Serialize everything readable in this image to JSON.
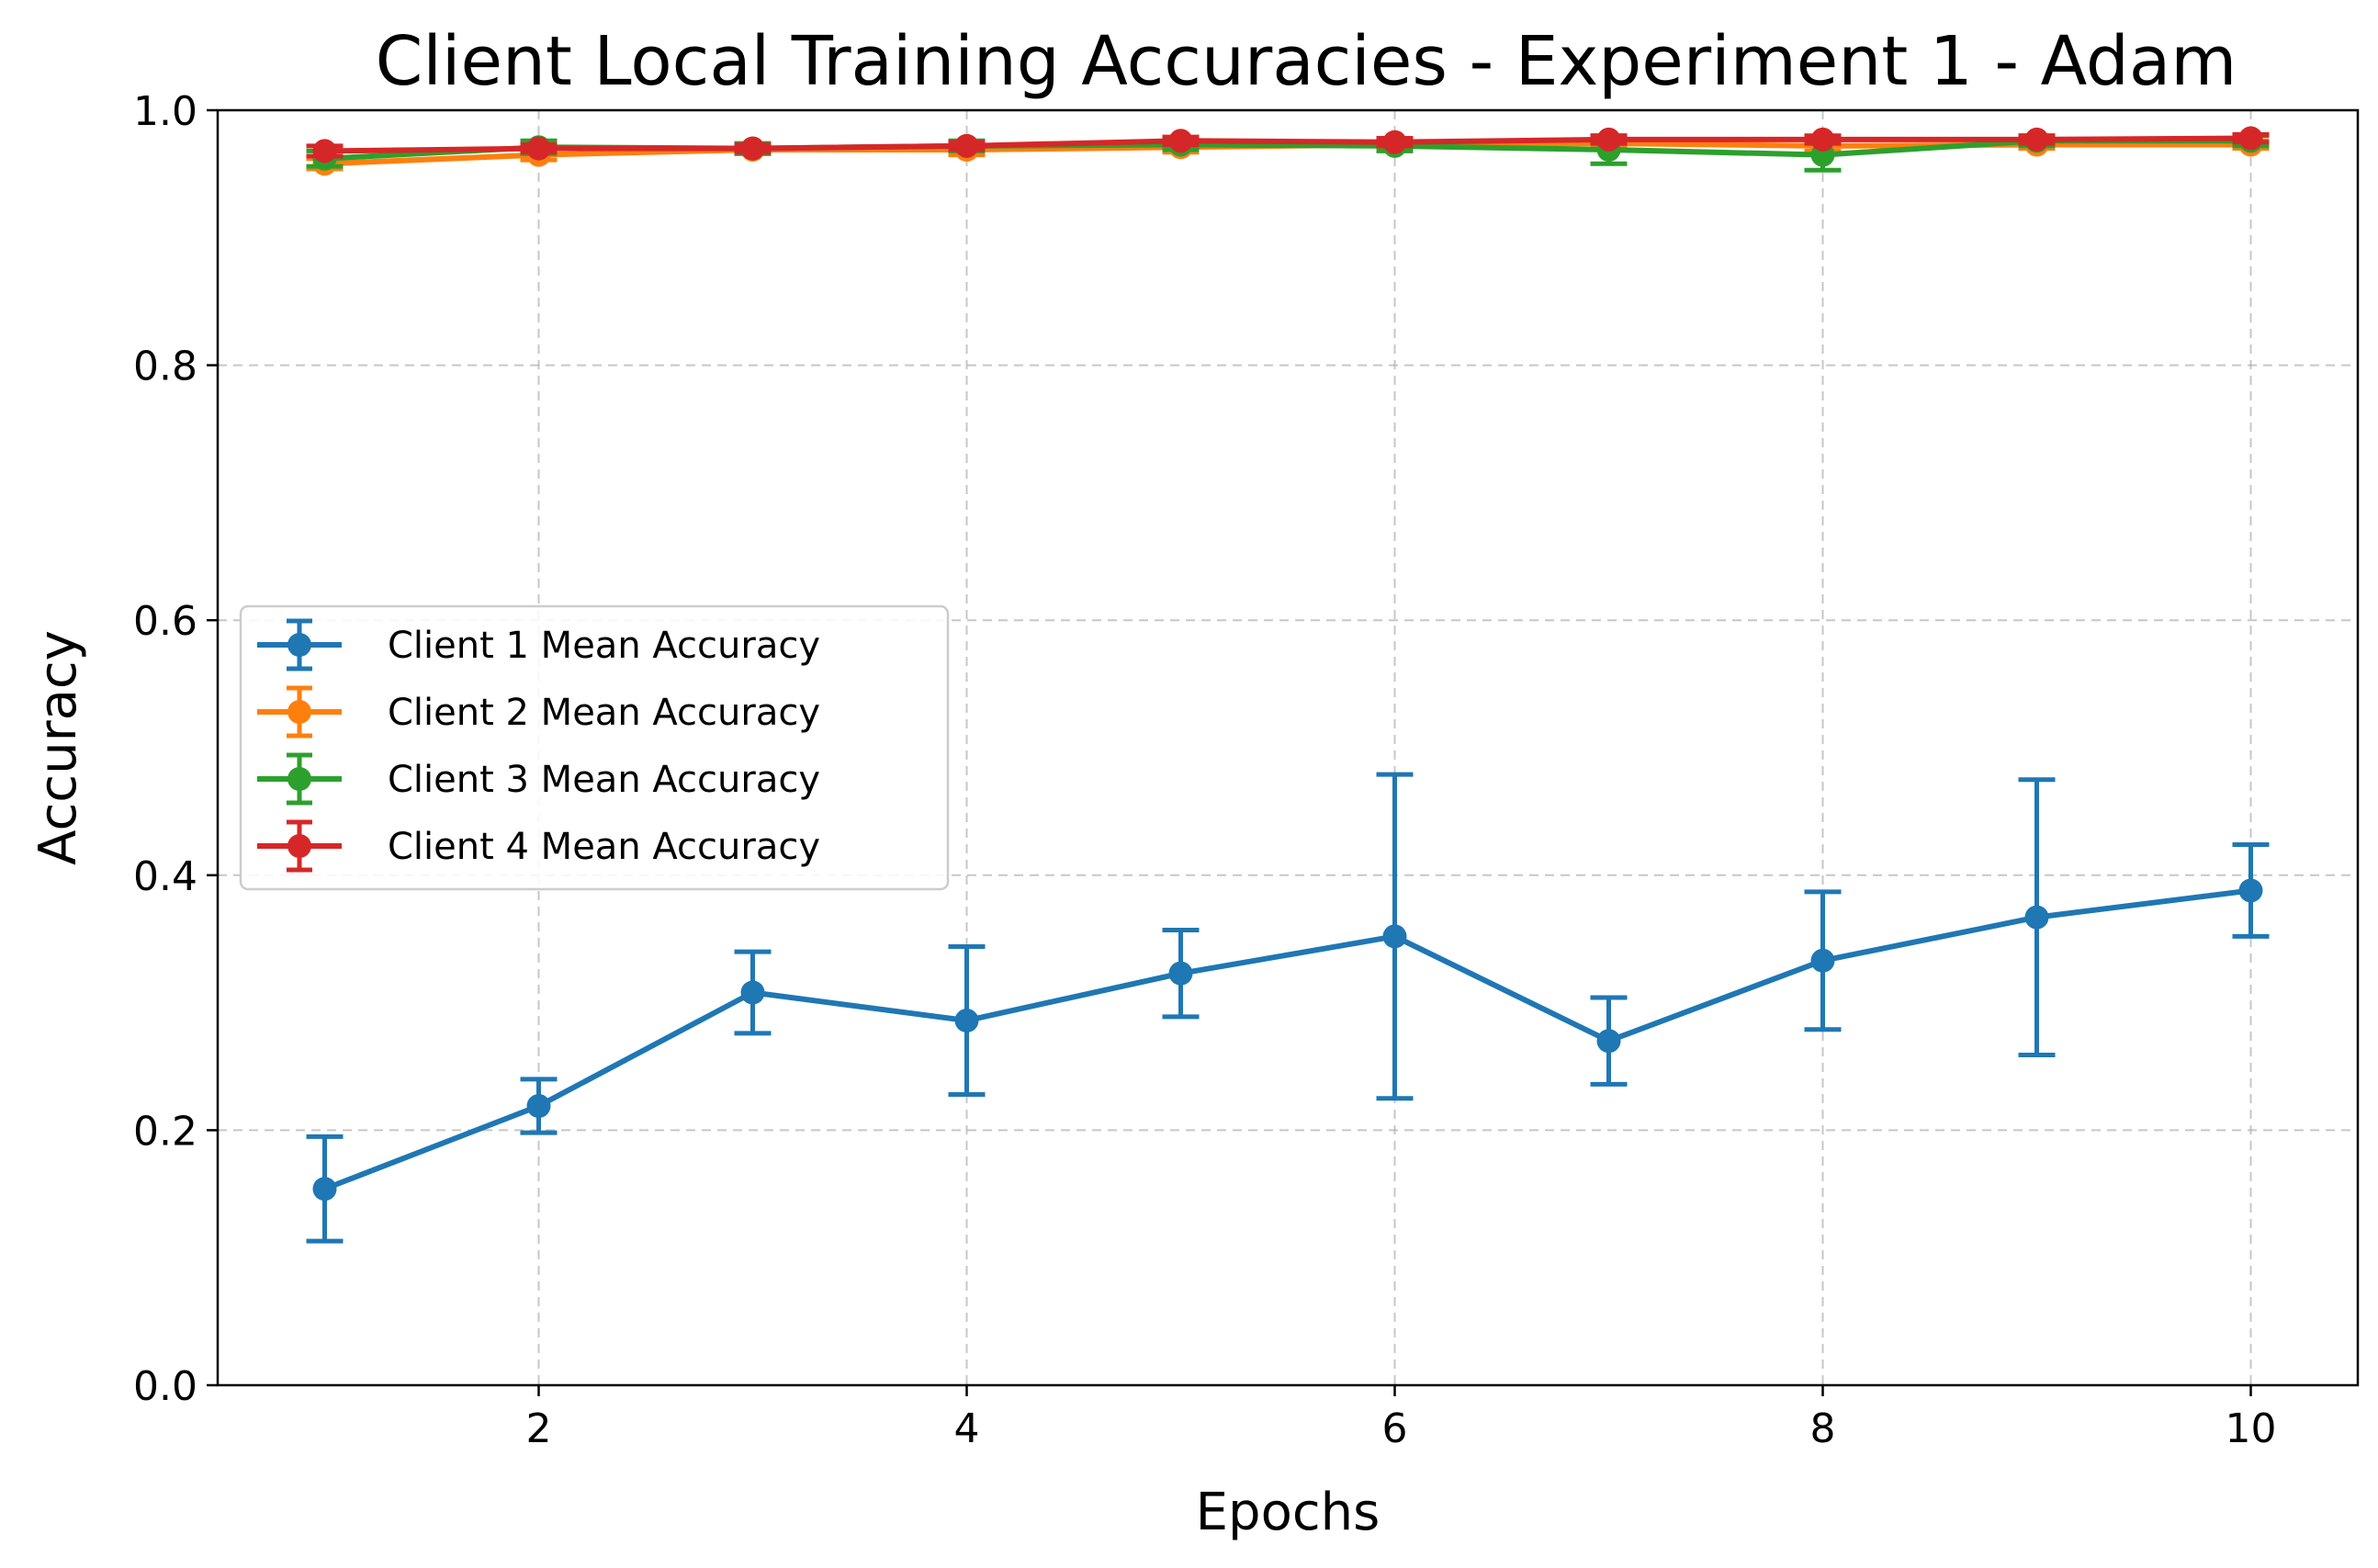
{
  "chart_data": {
    "type": "line",
    "title": "Client Local Training Accuracies - Experiment 1 - Adam",
    "xlabel": "Epochs",
    "ylabel": "Accuracy",
    "xlim": [
      0.5,
      10.5
    ],
    "ylim": [
      0.0,
      1.0
    ],
    "xticks": [
      2,
      4,
      6,
      8,
      10
    ],
    "yticks": [
      0.0,
      0.2,
      0.4,
      0.6,
      0.8,
      1.0
    ],
    "xtick_labels": [
      "2",
      "4",
      "6",
      "8",
      "10"
    ],
    "ytick_labels": [
      "0.0",
      "0.2",
      "0.4",
      "0.6",
      "0.8",
      "1.0"
    ],
    "grid": true,
    "legend_position": "center-left",
    "x": [
      1,
      2,
      3,
      4,
      5,
      6,
      7,
      8,
      9,
      10
    ],
    "series": [
      {
        "name": "Client 1 Mean Accuracy",
        "color": "#1f77b4",
        "values": [
          0.154,
          0.219,
          0.308,
          0.286,
          0.323,
          0.352,
          0.27,
          0.333,
          0.367,
          0.388
        ],
        "errors": [
          0.041,
          0.021,
          0.032,
          0.058,
          0.034,
          0.127,
          0.034,
          0.054,
          0.108,
          0.036
        ]
      },
      {
        "name": "Client 2 Mean Accuracy",
        "color": "#ff7f0e",
        "values": [
          0.958,
          0.965,
          0.969,
          0.969,
          0.971,
          0.973,
          0.974,
          0.972,
          0.973,
          0.973
        ],
        "errors": [
          0.004,
          0.004,
          0.003,
          0.004,
          0.004,
          0.003,
          0.003,
          0.004,
          0.003,
          0.003
        ]
      },
      {
        "name": "Client 3 Mean Accuracy",
        "color": "#2ca02c",
        "values": [
          0.962,
          0.971,
          0.97,
          0.972,
          0.973,
          0.972,
          0.969,
          0.965,
          0.976,
          0.976
        ],
        "errors": [
          0.006,
          0.005,
          0.004,
          0.004,
          0.004,
          0.004,
          0.011,
          0.012,
          0.004,
          0.004
        ]
      },
      {
        "name": "Client 4 Mean Accuracy",
        "color": "#d62728",
        "values": [
          0.968,
          0.97,
          0.97,
          0.972,
          0.976,
          0.975,
          0.977,
          0.977,
          0.977,
          0.978
        ],
        "errors": [
          0.004,
          0.003,
          0.003,
          0.003,
          0.003,
          0.003,
          0.003,
          0.003,
          0.003,
          0.003
        ]
      }
    ]
  }
}
